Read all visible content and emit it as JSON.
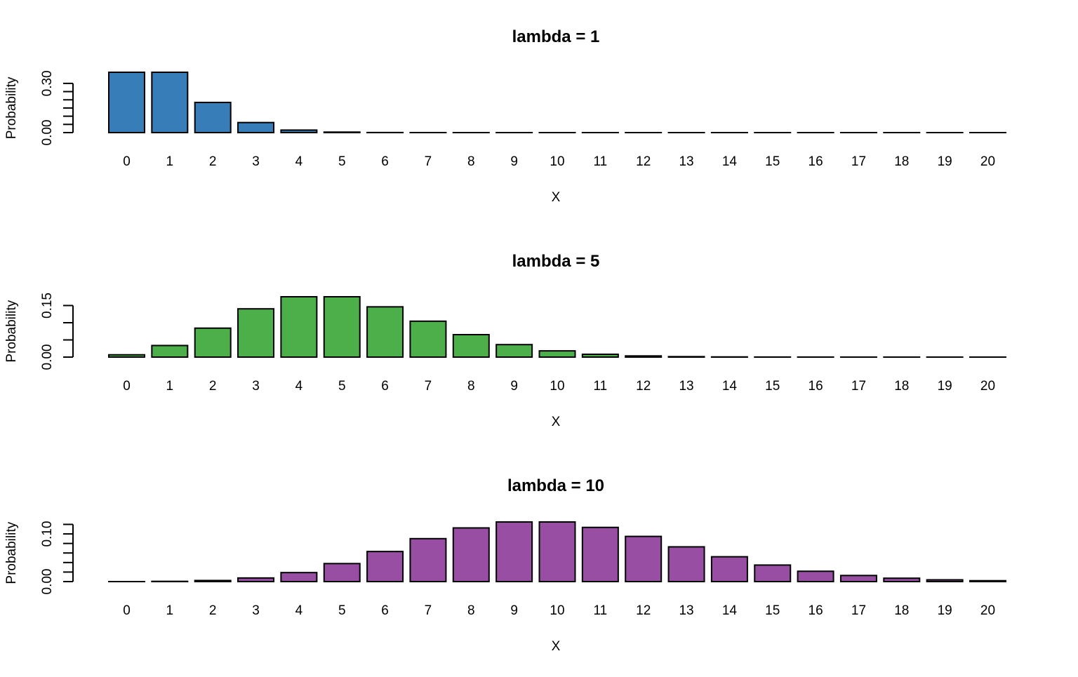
{
  "chart_data": [
    {
      "type": "bar",
      "title": "lambda = 1",
      "xlabel": "X",
      "ylabel": "Probability",
      "color": "#377EB8",
      "categories": [
        "0",
        "1",
        "2",
        "3",
        "4",
        "5",
        "6",
        "7",
        "8",
        "9",
        "10",
        "11",
        "12",
        "13",
        "14",
        "15",
        "16",
        "17",
        "18",
        "19",
        "20"
      ],
      "values": [
        0.3679,
        0.3679,
        0.1839,
        0.0613,
        0.0153,
        0.0031,
        0.0005,
        0.0001,
        0,
        0,
        0,
        0,
        0,
        0,
        0,
        0,
        0,
        0,
        0,
        0,
        0
      ],
      "yticks": [
        0,
        0.05,
        0.1,
        0.15,
        0.2,
        0.25,
        0.3
      ],
      "ytick_labels": [
        {
          "v": 0,
          "t": "0.00"
        },
        {
          "v": 0.3,
          "t": "0.30"
        }
      ],
      "ylim": [
        0,
        0.3679
      ]
    },
    {
      "type": "bar",
      "title": "lambda = 5",
      "xlabel": "X",
      "ylabel": "Probability",
      "color": "#4DAF4A",
      "categories": [
        "0",
        "1",
        "2",
        "3",
        "4",
        "5",
        "6",
        "7",
        "8",
        "9",
        "10",
        "11",
        "12",
        "13",
        "14",
        "15",
        "16",
        "17",
        "18",
        "19",
        "20"
      ],
      "values": [
        0.0067,
        0.0337,
        0.0842,
        0.1404,
        0.1755,
        0.1755,
        0.1462,
        0.1044,
        0.0653,
        0.0363,
        0.0181,
        0.0082,
        0.0034,
        0.0013,
        0.0005,
        0.0002,
        0.0001,
        0,
        0,
        0,
        0
      ],
      "yticks": [
        0,
        0.05,
        0.1,
        0.15
      ],
      "ytick_labels": [
        {
          "v": 0,
          "t": "0.00"
        },
        {
          "v": 0.15,
          "t": "0.15"
        }
      ],
      "ylim": [
        0,
        0.1755
      ]
    },
    {
      "type": "bar",
      "title": "lambda = 10",
      "xlabel": "X",
      "ylabel": "Probability",
      "color": "#984EA3",
      "categories": [
        "0",
        "1",
        "2",
        "3",
        "4",
        "5",
        "6",
        "7",
        "8",
        "9",
        "10",
        "11",
        "12",
        "13",
        "14",
        "15",
        "16",
        "17",
        "18",
        "19",
        "20"
      ],
      "values": [
        0.0,
        0.0005,
        0.0023,
        0.0076,
        0.0189,
        0.0378,
        0.0631,
        0.0901,
        0.1126,
        0.1251,
        0.1251,
        0.1137,
        0.0948,
        0.0729,
        0.0521,
        0.0347,
        0.0217,
        0.0128,
        0.0071,
        0.0037,
        0.0019
      ],
      "yticks": [
        0,
        0.02,
        0.04,
        0.06,
        0.08,
        0.1,
        0.12
      ],
      "ytick_labels": [
        {
          "v": 0,
          "t": "0.00"
        },
        {
          "v": 0.1,
          "t": "0.10"
        }
      ],
      "ylim": [
        0,
        0.1251
      ]
    }
  ]
}
